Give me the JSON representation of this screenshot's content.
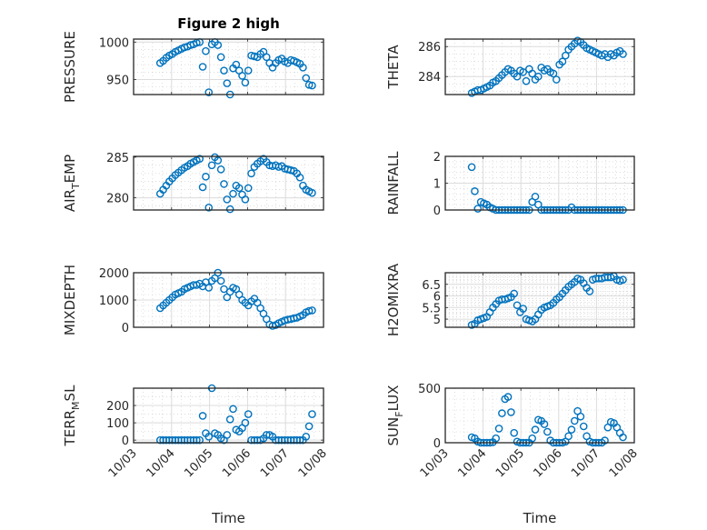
{
  "figure": {
    "marker_color": "#0072BD",
    "axes_color": "#262626",
    "grid_color": "#dcdcdc"
  },
  "chart_data": [
    {
      "type": "scatter",
      "title": "Figure 2 high",
      "ylabel": "PRESSURE",
      "xlabel": "",
      "ylim": [
        930,
        1004
      ],
      "yticks": [
        950,
        1000
      ],
      "yticklabels": [
        "950",
        "1000"
      ],
      "minor_y_step": 10,
      "xlim": [
        0,
        5
      ],
      "xticks": [
        0,
        1,
        2,
        3,
        4,
        5
      ],
      "xticklabels": [],
      "minor_x_step": 0.25,
      "y": [
        972,
        975,
        979,
        982,
        984,
        987,
        989,
        991,
        993,
        994,
        996,
        997,
        999,
        1000,
        967,
        988,
        933,
        997,
        1000,
        996,
        980,
        962,
        945,
        930,
        965,
        970,
        962,
        955,
        946,
        962,
        982,
        981,
        980,
        984,
        987,
        980,
        972,
        966,
        972,
        976,
        978,
        974,
        972,
        976,
        975,
        973,
        971,
        966,
        952,
        943,
        942
      ]
    },
    {
      "type": "scatter",
      "ylabel": "THETA",
      "xlabel": "",
      "ylim": [
        282.8,
        286.5
      ],
      "yticks": [
        284,
        286
      ],
      "yticklabels": [
        "284",
        "286"
      ],
      "minor_y_step": 0.5,
      "xlim": [
        0,
        5
      ],
      "xticks": [
        0,
        1,
        2,
        3,
        4,
        5
      ],
      "xticklabels": [],
      "minor_x_step": 0.25,
      "y": [
        282.9,
        283.0,
        283.1,
        283.1,
        283.2,
        283.3,
        283.4,
        283.6,
        283.7,
        283.9,
        284.1,
        284.3,
        284.5,
        284.4,
        284.2,
        284.0,
        284.4,
        284.3,
        283.7,
        284.5,
        284.2,
        283.8,
        284.0,
        284.6,
        284.4,
        284.5,
        284.3,
        284.2,
        283.8,
        284.8,
        285.0,
        285.4,
        285.8,
        286.0,
        286.2,
        286.4,
        286.3,
        286.1,
        285.9,
        285.8,
        285.7,
        285.6,
        285.5,
        285.4,
        285.5,
        285.3,
        285.5,
        285.4,
        285.6,
        285.7,
        285.5
      ]
    },
    {
      "type": "scatter",
      "ylabel": "AIR_TEMP",
      "xlabel": "",
      "ylim": [
        278.5,
        285.1
      ],
      "yticks": [
        280,
        285
      ],
      "yticklabels": [
        "280",
        "285"
      ],
      "minor_y_step": 1,
      "xlim": [
        0,
        5
      ],
      "xticks": [
        0,
        1,
        2,
        3,
        4,
        5
      ],
      "xticklabels": [],
      "minor_x_step": 0.25,
      "y": [
        280.5,
        281.0,
        281.5,
        282.0,
        282.4,
        282.8,
        283.1,
        283.4,
        283.7,
        283.9,
        284.2,
        284.4,
        284.6,
        284.8,
        281.3,
        282.6,
        278.8,
        284.0,
        285.0,
        284.6,
        283.5,
        281.7,
        279.8,
        278.6,
        280.5,
        281.5,
        281.2,
        280.4,
        279.8,
        281.2,
        283.0,
        283.8,
        284.2,
        284.5,
        284.8,
        284.4,
        284.0,
        283.9,
        284.0,
        283.8,
        283.9,
        283.6,
        283.5,
        283.4,
        283.3,
        283.0,
        282.5,
        281.5,
        281.0,
        280.8,
        280.6
      ]
    },
    {
      "type": "scatter",
      "ylabel": "RAINFALL",
      "xlabel": "",
      "ylim": [
        0,
        2
      ],
      "yticks": [
        0,
        1,
        2
      ],
      "yticklabels": [
        "0",
        "1",
        "2"
      ],
      "minor_y_step": 0.2,
      "xlim": [
        0,
        5
      ],
      "xticks": [
        0,
        1,
        2,
        3,
        4,
        5
      ],
      "xticklabels": [],
      "minor_x_step": 0.25,
      "y": [
        1.6,
        0.7,
        0.05,
        0.3,
        0.25,
        0.2,
        0.1,
        0.05,
        0,
        0,
        0,
        0,
        0,
        0,
        0,
        0,
        0,
        0,
        0,
        0,
        0.3,
        0.5,
        0.2,
        0,
        0,
        0,
        0,
        0,
        0,
        0,
        0,
        0,
        0,
        0.1,
        0,
        0,
        0,
        0,
        0,
        0,
        0,
        0,
        0,
        0,
        0,
        0,
        0,
        0,
        0,
        0,
        0
      ]
    },
    {
      "type": "scatter",
      "ylabel": "MIXDEPTH",
      "xlabel": "",
      "ylim": [
        0,
        2000
      ],
      "yticks": [
        0,
        1000,
        2000
      ],
      "yticklabels": [
        "0",
        "1000",
        "2000"
      ],
      "minor_y_step": 200,
      "xlim": [
        0,
        5
      ],
      "xticks": [
        0,
        1,
        2,
        3,
        4,
        5
      ],
      "xticklabels": [],
      "minor_x_step": 0.25,
      "y": [
        700,
        800,
        900,
        1000,
        1100,
        1200,
        1250,
        1300,
        1400,
        1450,
        1500,
        1550,
        1550,
        1600,
        1500,
        1650,
        1450,
        1700,
        1800,
        2000,
        1700,
        1400,
        1100,
        1300,
        1450,
        1400,
        1200,
        1000,
        900,
        800,
        950,
        1050,
        900,
        700,
        500,
        300,
        100,
        50,
        80,
        150,
        200,
        250,
        280,
        300,
        330,
        350,
        400,
        450,
        550,
        600,
        620
      ]
    },
    {
      "type": "scatter",
      "ylabel": "H2OMIXRA",
      "xlabel": "",
      "ylim": [
        4.65,
        7.0
      ],
      "yticks": [
        5,
        5.5,
        6,
        6.5
      ],
      "yticklabels": [
        "5",
        "5.5",
        "6",
        "6.5"
      ],
      "minor_y_step": 0.1,
      "xlim": [
        0,
        5
      ],
      "xticks": [
        0,
        1,
        2,
        3,
        4,
        5
      ],
      "xticklabels": [],
      "minor_x_step": 0.1,
      "y": [
        4.75,
        4.8,
        4.95,
        5.0,
        5.05,
        5.1,
        5.3,
        5.5,
        5.65,
        5.8,
        5.85,
        5.85,
        5.9,
        5.95,
        6.1,
        5.6,
        5.3,
        5.45,
        5.0,
        4.95,
        4.9,
        5.0,
        5.2,
        5.4,
        5.5,
        5.55,
        5.6,
        5.7,
        5.85,
        5.95,
        6.1,
        6.25,
        6.4,
        6.5,
        6.6,
        6.75,
        6.7,
        6.55,
        6.35,
        6.2,
        6.7,
        6.75,
        6.75,
        6.75,
        6.8,
        6.8,
        6.8,
        6.85,
        6.7,
        6.65,
        6.7
      ]
    },
    {
      "type": "scatter",
      "ylabel": "TERR_MSL",
      "xlabel": "Time",
      "ylim": [
        -15,
        300
      ],
      "yticks": [
        0,
        100,
        200
      ],
      "yticklabels": [
        "0",
        "100",
        "200"
      ],
      "minor_y_step": 50,
      "xlim": [
        0,
        5
      ],
      "xticks": [
        0,
        1,
        2,
        3,
        4,
        5
      ],
      "xticklabels": [
        "10/03",
        "10/04",
        "10/05",
        "10/06",
        "10/07",
        "10/08"
      ],
      "minor_x_step": 0.25,
      "y": [
        0,
        0,
        0,
        0,
        0,
        0,
        0,
        0,
        0,
        0,
        0,
        0,
        0,
        0,
        140,
        40,
        20,
        300,
        40,
        30,
        10,
        0,
        30,
        120,
        180,
        60,
        50,
        70,
        100,
        150,
        0,
        0,
        0,
        0,
        10,
        30,
        30,
        20,
        0,
        0,
        0,
        0,
        0,
        0,
        0,
        0,
        0,
        0,
        20,
        80,
        150
      ]
    },
    {
      "type": "scatter",
      "ylabel": "SUN_FLUX",
      "xlabel": "Time",
      "ylim": [
        0,
        500
      ],
      "yticks": [
        0,
        500
      ],
      "yticklabels": [
        "0",
        "500"
      ],
      "minor_y_step": 100,
      "xlim": [
        0,
        5
      ],
      "xticks": [
        0,
        1,
        2,
        3,
        4,
        5
      ],
      "xticklabels": [
        "10/03",
        "10/04",
        "10/05",
        "10/06",
        "10/07",
        "10/08"
      ],
      "minor_x_step": 0.25,
      "y": [
        50,
        40,
        10,
        0,
        0,
        0,
        0,
        5,
        40,
        130,
        270,
        400,
        420,
        280,
        90,
        10,
        0,
        0,
        0,
        0,
        40,
        120,
        210,
        200,
        170,
        100,
        20,
        0,
        0,
        0,
        0,
        10,
        60,
        120,
        200,
        290,
        240,
        150,
        60,
        10,
        0,
        0,
        0,
        0,
        20,
        140,
        190,
        180,
        140,
        90,
        50
      ]
    }
  ],
  "x_days_since_1003": [
    0.7,
    0.78,
    0.86,
    0.94,
    1.02,
    1.1,
    1.18,
    1.26,
    1.34,
    1.42,
    1.5,
    1.58,
    1.66,
    1.74,
    1.82,
    1.9,
    1.98,
    2.06,
    2.14,
    2.22,
    2.3,
    2.38,
    2.46,
    2.54,
    2.62,
    2.7,
    2.78,
    2.86,
    2.94,
    3.02,
    3.1,
    3.18,
    3.26,
    3.34,
    3.42,
    3.5,
    3.58,
    3.66,
    3.74,
    3.82,
    3.9,
    3.98,
    4.06,
    4.14,
    4.22,
    4.3,
    4.38,
    4.46,
    4.54,
    4.62,
    4.7
  ]
}
